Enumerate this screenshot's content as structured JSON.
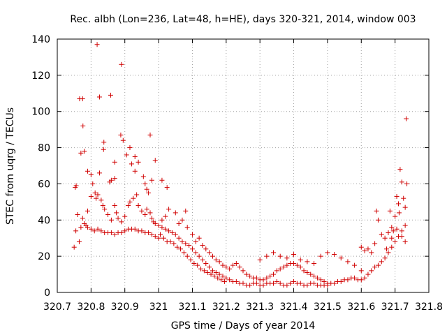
{
  "chart_data": {
    "type": "scatter",
    "title": "Rec. albh (Lon=236, Lat=48, h=HE), days 320-321, 2014, window 003",
    "xlabel": "GPS time / Days of year 2014",
    "ylabel": "STEC from uqrg / TECUs",
    "xlim": [
      320.7,
      321.8
    ],
    "ylim": [
      0,
      140
    ],
    "x_ticks": [
      320.7,
      320.8,
      320.9,
      321.0,
      321.1,
      321.2,
      321.3,
      321.4,
      321.5,
      321.6,
      321.7,
      321.8
    ],
    "x_tick_labels": [
      "320.7",
      "320.8",
      "320.9",
      "321",
      "321.1",
      "321.2",
      "321.3",
      "321.4",
      "321.5",
      "321.6",
      "321.7",
      "321.8"
    ],
    "y_ticks": [
      0,
      20,
      40,
      60,
      80,
      100,
      120,
      140
    ],
    "y_tick_labels": [
      "0",
      "20",
      "40",
      "60",
      "80",
      "100",
      "120",
      "140"
    ],
    "grid": true,
    "marker": "+",
    "color": "#d00000",
    "series": [
      {
        "points": [
          [
            320.75,
            25
          ],
          [
            320.755,
            34
          ],
          [
            320.76,
            43
          ],
          [
            320.753,
            58
          ],
          [
            320.756,
            59
          ],
          [
            320.765,
            28
          ],
          [
            320.77,
            36
          ],
          [
            320.775,
            41
          ],
          [
            320.78,
            38
          ],
          [
            320.785,
            37
          ],
          [
            320.79,
            36
          ],
          [
            320.8,
            35
          ],
          [
            320.81,
            34
          ],
          [
            320.82,
            35
          ],
          [
            320.83,
            34
          ],
          [
            320.84,
            33
          ],
          [
            320.85,
            33
          ],
          [
            320.86,
            33
          ],
          [
            320.87,
            32
          ],
          [
            320.88,
            33
          ],
          [
            320.89,
            33
          ],
          [
            320.9,
            34
          ],
          [
            320.91,
            35
          ],
          [
            320.92,
            35
          ],
          [
            320.93,
            35
          ],
          [
            320.94,
            34
          ],
          [
            320.95,
            34
          ],
          [
            320.96,
            33
          ],
          [
            320.97,
            33
          ],
          [
            320.98,
            32
          ],
          [
            320.99,
            31
          ],
          [
            321.0,
            30
          ],
          [
            320.766,
            107
          ],
          [
            320.775,
            107
          ],
          [
            320.818,
            137
          ],
          [
            320.776,
            92
          ],
          [
            320.825,
            108
          ],
          [
            320.858,
            109
          ],
          [
            320.89,
            126
          ],
          [
            320.77,
            77
          ],
          [
            320.78,
            78
          ],
          [
            320.838,
            83
          ],
          [
            320.837,
            79
          ],
          [
            320.888,
            87
          ],
          [
            320.895,
            84
          ],
          [
            320.975,
            87
          ],
          [
            320.79,
            67
          ],
          [
            320.8,
            65
          ],
          [
            320.825,
            66
          ],
          [
            320.855,
            61
          ],
          [
            320.86,
            62
          ],
          [
            320.87,
            72
          ],
          [
            320.87,
            63
          ],
          [
            320.905,
            76
          ],
          [
            320.915,
            80
          ],
          [
            320.92,
            71
          ],
          [
            320.93,
            75
          ],
          [
            320.93,
            67
          ],
          [
            320.94,
            72
          ],
          [
            320.955,
            64
          ],
          [
            320.96,
            60
          ],
          [
            320.965,
            57
          ],
          [
            320.97,
            55
          ],
          [
            320.98,
            62
          ],
          [
            320.99,
            73
          ],
          [
            321.01,
            62
          ],
          [
            321.025,
            58
          ],
          [
            320.79,
            45
          ],
          [
            320.8,
            53
          ],
          [
            320.805,
            60
          ],
          [
            320.812,
            55
          ],
          [
            320.815,
            52
          ],
          [
            320.82,
            54
          ],
          [
            320.83,
            51
          ],
          [
            320.835,
            48
          ],
          [
            320.84,
            46
          ],
          [
            320.85,
            43
          ],
          [
            320.86,
            40
          ],
          [
            320.87,
            48
          ],
          [
            320.875,
            44
          ],
          [
            320.88,
            41
          ],
          [
            320.89,
            39
          ],
          [
            320.9,
            42
          ],
          [
            320.91,
            48
          ],
          [
            320.915,
            50
          ],
          [
            320.925,
            52
          ],
          [
            320.935,
            54
          ],
          [
            320.94,
            48
          ],
          [
            320.95,
            45
          ],
          [
            320.96,
            43
          ],
          [
            320.965,
            46
          ],
          [
            320.975,
            44
          ],
          [
            320.98,
            41
          ],
          [
            320.985,
            39
          ],
          [
            320.99,
            38
          ],
          [
            321.0,
            37
          ],
          [
            321.01,
            36
          ],
          [
            321.02,
            35
          ],
          [
            321.03,
            34
          ],
          [
            321.04,
            33
          ],
          [
            321.05,
            32
          ],
          [
            321.06,
            30
          ],
          [
            321.07,
            28
          ],
          [
            321.08,
            27
          ],
          [
            321.09,
            26
          ],
          [
            321.1,
            24
          ],
          [
            321.11,
            22
          ],
          [
            321.12,
            20
          ],
          [
            321.13,
            18
          ],
          [
            321.14,
            16
          ],
          [
            321.15,
            14
          ],
          [
            321.16,
            12
          ],
          [
            321.17,
            11
          ],
          [
            321.18,
            10
          ],
          [
            321.19,
            9
          ],
          [
            321.2,
            8
          ],
          [
            321.21,
            7
          ],
          [
            321.22,
            6
          ],
          [
            321.23,
            6
          ],
          [
            321.24,
            5
          ],
          [
            321.25,
            5
          ],
          [
            321.005,
            32
          ],
          [
            321.015,
            30
          ],
          [
            321.025,
            28
          ],
          [
            321.035,
            28
          ],
          [
            321.045,
            27
          ],
          [
            321.055,
            25
          ],
          [
            321.065,
            24
          ],
          [
            321.075,
            22
          ],
          [
            321.085,
            20
          ],
          [
            321.095,
            18
          ],
          [
            321.105,
            16
          ],
          [
            321.115,
            15
          ],
          [
            321.125,
            13
          ],
          [
            321.135,
            12
          ],
          [
            321.145,
            11
          ],
          [
            321.155,
            10
          ],
          [
            321.165,
            9
          ],
          [
            321.175,
            8
          ],
          [
            321.185,
            7
          ],
          [
            321.195,
            6
          ],
          [
            321.01,
            40
          ],
          [
            321.02,
            42
          ],
          [
            321.03,
            46
          ],
          [
            321.05,
            44
          ],
          [
            321.06,
            38
          ],
          [
            321.07,
            40
          ],
          [
            321.08,
            45
          ],
          [
            321.085,
            36
          ],
          [
            321.1,
            32
          ],
          [
            321.11,
            28
          ],
          [
            321.12,
            30
          ],
          [
            321.13,
            26
          ],
          [
            321.14,
            24
          ],
          [
            321.15,
            22
          ],
          [
            321.16,
            20
          ],
          [
            321.17,
            18
          ],
          [
            321.18,
            17
          ],
          [
            321.19,
            15
          ],
          [
            321.2,
            14
          ],
          [
            321.21,
            13
          ],
          [
            321.22,
            15
          ],
          [
            321.23,
            16
          ],
          [
            321.24,
            14
          ],
          [
            321.25,
            12
          ],
          [
            321.26,
            10
          ],
          [
            321.27,
            9
          ],
          [
            321.28,
            8
          ],
          [
            321.29,
            8
          ],
          [
            321.3,
            7
          ],
          [
            321.31,
            7
          ],
          [
            321.32,
            8
          ],
          [
            321.33,
            9
          ],
          [
            321.34,
            10
          ],
          [
            321.35,
            12
          ],
          [
            321.36,
            13
          ],
          [
            321.37,
            14
          ],
          [
            321.38,
            15
          ],
          [
            321.39,
            16
          ],
          [
            321.4,
            16
          ],
          [
            321.41,
            15
          ],
          [
            321.42,
            14
          ],
          [
            321.43,
            12
          ],
          [
            321.44,
            11
          ],
          [
            321.45,
            10
          ],
          [
            321.46,
            9
          ],
          [
            321.47,
            8
          ],
          [
            321.48,
            7
          ],
          [
            321.49,
            6
          ],
          [
            321.5,
            5
          ],
          [
            321.26,
            4
          ],
          [
            321.27,
            4
          ],
          [
            321.28,
            5
          ],
          [
            321.29,
            5
          ],
          [
            321.3,
            4
          ],
          [
            321.31,
            4
          ],
          [
            321.32,
            5
          ],
          [
            321.33,
            5
          ],
          [
            321.34,
            5
          ],
          [
            321.35,
            6
          ],
          [
            321.36,
            5
          ],
          [
            321.37,
            4
          ],
          [
            321.38,
            4
          ],
          [
            321.39,
            5
          ],
          [
            321.4,
            6
          ],
          [
            321.41,
            5
          ],
          [
            321.42,
            5
          ],
          [
            321.43,
            4
          ],
          [
            321.44,
            4
          ],
          [
            321.45,
            5
          ],
          [
            321.46,
            5
          ],
          [
            321.47,
            4
          ],
          [
            321.48,
            4
          ],
          [
            321.49,
            4
          ],
          [
            321.5,
            4
          ],
          [
            321.3,
            18
          ],
          [
            321.32,
            20
          ],
          [
            321.34,
            22
          ],
          [
            321.36,
            20
          ],
          [
            321.38,
            19
          ],
          [
            321.4,
            21
          ],
          [
            321.42,
            18
          ],
          [
            321.44,
            17
          ],
          [
            321.46,
            16
          ],
          [
            321.48,
            20
          ],
          [
            321.5,
            22
          ],
          [
            321.52,
            21
          ],
          [
            321.54,
            19
          ],
          [
            321.56,
            17
          ],
          [
            321.58,
            15
          ],
          [
            321.6,
            12
          ],
          [
            321.51,
            5
          ],
          [
            321.52,
            5
          ],
          [
            321.53,
            6
          ],
          [
            321.54,
            6
          ],
          [
            321.55,
            7
          ],
          [
            321.56,
            7
          ],
          [
            321.57,
            8
          ],
          [
            321.58,
            8
          ],
          [
            321.59,
            7
          ],
          [
            321.6,
            7
          ],
          [
            321.61,
            8
          ],
          [
            321.62,
            10
          ],
          [
            321.63,
            12
          ],
          [
            321.64,
            14
          ],
          [
            321.65,
            15
          ],
          [
            321.66,
            17
          ],
          [
            321.67,
            19
          ],
          [
            321.68,
            22
          ],
          [
            321.69,
            25
          ],
          [
            321.7,
            28
          ],
          [
            321.71,
            31
          ],
          [
            321.72,
            34
          ],
          [
            321.73,
            37
          ],
          [
            321.6,
            25
          ],
          [
            321.61,
            23
          ],
          [
            321.62,
            24
          ],
          [
            321.63,
            22
          ],
          [
            321.64,
            27
          ],
          [
            321.645,
            45
          ],
          [
            321.65,
            40
          ],
          [
            321.66,
            32
          ],
          [
            321.67,
            30
          ],
          [
            321.68,
            33
          ],
          [
            321.685,
            45
          ],
          [
            321.69,
            36
          ],
          [
            321.695,
            34
          ],
          [
            321.7,
            42
          ],
          [
            321.705,
            53
          ],
          [
            321.71,
            49
          ],
          [
            321.712,
            44
          ],
          [
            321.715,
            68
          ],
          [
            321.72,
            61
          ],
          [
            321.725,
            52
          ],
          [
            321.73,
            47
          ],
          [
            321.733,
            96
          ],
          [
            321.735,
            60
          ],
          [
            321.73,
            28
          ],
          [
            321.72,
            31
          ],
          [
            321.705,
            35
          ],
          [
            321.69,
            30
          ],
          [
            321.675,
            24
          ]
        ]
      }
    ]
  }
}
